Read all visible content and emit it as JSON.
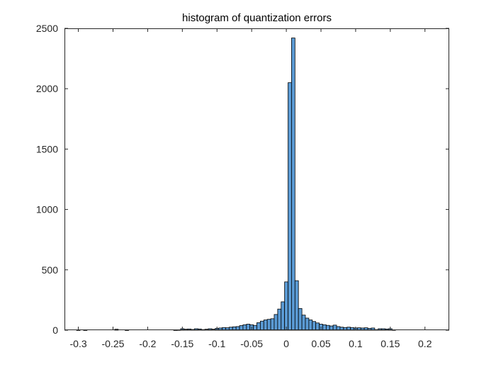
{
  "chart_data": {
    "type": "bar",
    "title": "histogram of quantization errors",
    "xlabel": "",
    "ylabel": "",
    "xlim": [
      -0.32,
      0.235
    ],
    "ylim": [
      0,
      2500
    ],
    "x_ticks": [
      -0.3,
      -0.25,
      -0.2,
      -0.15,
      -0.1,
      -0.05,
      0,
      0.05,
      0.1,
      0.15,
      0.2
    ],
    "x_tick_labels": [
      "-0.3",
      "-0.25",
      "-0.2",
      "-0.15",
      "-0.1",
      "-0.05",
      "0",
      "0.05",
      "0.1",
      "0.15",
      "0.2"
    ],
    "y_ticks": [
      0,
      500,
      1000,
      1500,
      2000,
      2500
    ],
    "y_tick_labels": [
      "0",
      "500",
      "1000",
      "1500",
      "2000",
      "2500"
    ],
    "bin_width": 0.005,
    "bar_color": "#5b9bd5",
    "edge_color": "#000000",
    "grid": false,
    "bins": [
      {
        "x": -0.3,
        "y": 1
      },
      {
        "x": -0.295,
        "y": 0
      },
      {
        "x": -0.29,
        "y": 1
      },
      {
        "x": -0.285,
        "y": 0
      },
      {
        "x": -0.28,
        "y": 0
      },
      {
        "x": -0.275,
        "y": 0
      },
      {
        "x": -0.27,
        "y": 0
      },
      {
        "x": -0.265,
        "y": 0
      },
      {
        "x": -0.26,
        "y": 0
      },
      {
        "x": -0.255,
        "y": 0
      },
      {
        "x": -0.25,
        "y": 0
      },
      {
        "x": -0.245,
        "y": 8
      },
      {
        "x": -0.24,
        "y": 0
      },
      {
        "x": -0.235,
        "y": 0
      },
      {
        "x": -0.23,
        "y": 1
      },
      {
        "x": -0.225,
        "y": 0
      },
      {
        "x": -0.22,
        "y": 0
      },
      {
        "x": -0.215,
        "y": 0
      },
      {
        "x": -0.21,
        "y": 0
      },
      {
        "x": -0.205,
        "y": 0
      },
      {
        "x": -0.2,
        "y": 0
      },
      {
        "x": -0.195,
        "y": 0
      },
      {
        "x": -0.19,
        "y": 0
      },
      {
        "x": -0.185,
        "y": 0
      },
      {
        "x": -0.18,
        "y": 0
      },
      {
        "x": -0.175,
        "y": 0
      },
      {
        "x": -0.17,
        "y": 0
      },
      {
        "x": -0.165,
        "y": 0
      },
      {
        "x": -0.16,
        "y": 1
      },
      {
        "x": -0.155,
        "y": 2
      },
      {
        "x": -0.15,
        "y": 12
      },
      {
        "x": -0.145,
        "y": 8
      },
      {
        "x": -0.14,
        "y": 10
      },
      {
        "x": -0.135,
        "y": 6
      },
      {
        "x": -0.13,
        "y": 12
      },
      {
        "x": -0.125,
        "y": 10
      },
      {
        "x": -0.12,
        "y": 5
      },
      {
        "x": -0.115,
        "y": 8
      },
      {
        "x": -0.11,
        "y": 12
      },
      {
        "x": -0.105,
        "y": 8
      },
      {
        "x": -0.1,
        "y": 15
      },
      {
        "x": -0.095,
        "y": 18
      },
      {
        "x": -0.09,
        "y": 22
      },
      {
        "x": -0.085,
        "y": 20
      },
      {
        "x": -0.08,
        "y": 25
      },
      {
        "x": -0.075,
        "y": 28
      },
      {
        "x": -0.07,
        "y": 30
      },
      {
        "x": -0.065,
        "y": 38
      },
      {
        "x": -0.06,
        "y": 45
      },
      {
        "x": -0.055,
        "y": 50
      },
      {
        "x": -0.05,
        "y": 45
      },
      {
        "x": -0.045,
        "y": 40
      },
      {
        "x": -0.04,
        "y": 62
      },
      {
        "x": -0.035,
        "y": 75
      },
      {
        "x": -0.03,
        "y": 85
      },
      {
        "x": -0.025,
        "y": 90
      },
      {
        "x": -0.02,
        "y": 95
      },
      {
        "x": -0.015,
        "y": 130
      },
      {
        "x": -0.01,
        "y": 175
      },
      {
        "x": -0.005,
        "y": 235
      },
      {
        "x": 0.0,
        "y": 400
      },
      {
        "x": 0.005,
        "y": 2050
      },
      {
        "x": 0.01,
        "y": 2420
      },
      {
        "x": 0.015,
        "y": 410
      },
      {
        "x": 0.02,
        "y": 180
      },
      {
        "x": 0.025,
        "y": 125
      },
      {
        "x": 0.03,
        "y": 100
      },
      {
        "x": 0.035,
        "y": 85
      },
      {
        "x": 0.04,
        "y": 72
      },
      {
        "x": 0.045,
        "y": 60
      },
      {
        "x": 0.05,
        "y": 50
      },
      {
        "x": 0.055,
        "y": 45
      },
      {
        "x": 0.06,
        "y": 40
      },
      {
        "x": 0.065,
        "y": 35
      },
      {
        "x": 0.07,
        "y": 42
      },
      {
        "x": 0.075,
        "y": 30
      },
      {
        "x": 0.08,
        "y": 25
      },
      {
        "x": 0.085,
        "y": 22
      },
      {
        "x": 0.09,
        "y": 25
      },
      {
        "x": 0.095,
        "y": 22
      },
      {
        "x": 0.1,
        "y": 18
      },
      {
        "x": 0.105,
        "y": 20
      },
      {
        "x": 0.11,
        "y": 18
      },
      {
        "x": 0.115,
        "y": 20
      },
      {
        "x": 0.12,
        "y": 15
      },
      {
        "x": 0.125,
        "y": 18
      },
      {
        "x": 0.13,
        "y": 5
      },
      {
        "x": 0.135,
        "y": 12
      },
      {
        "x": 0.14,
        "y": 12
      },
      {
        "x": 0.145,
        "y": 10
      },
      {
        "x": 0.15,
        "y": 12
      },
      {
        "x": 0.155,
        "y": 2
      }
    ]
  }
}
